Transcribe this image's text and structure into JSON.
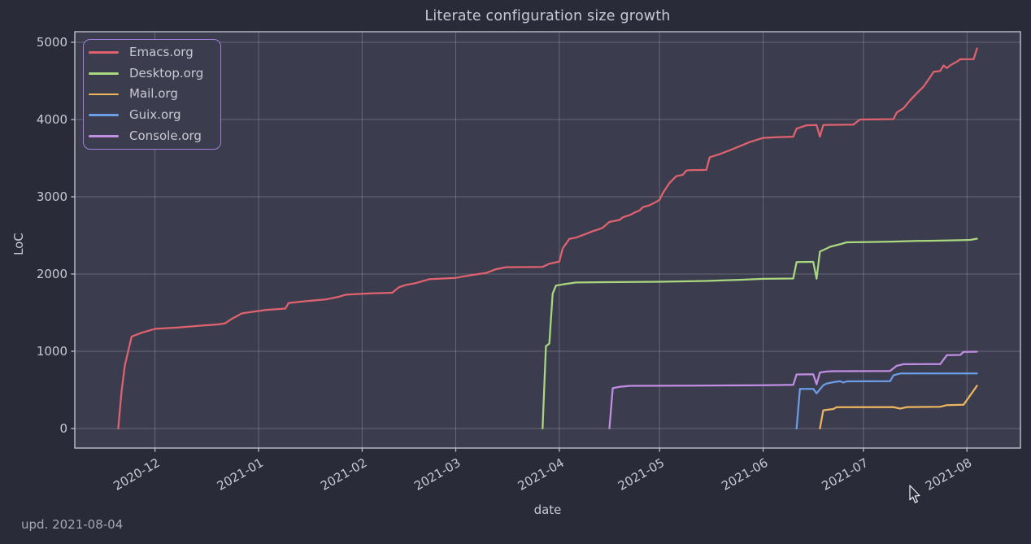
{
  "theme": {
    "figure_background": "#292b38",
    "axes_background": "#3b3d4e",
    "grid_color": "rgba(255,255,255,0.22)",
    "spine_color": "#bfc0c8",
    "text_color": "#c8c9d2",
    "muted_text_color": "#a5a8b2",
    "legend_border_color": "#9e80d8"
  },
  "chart_data": {
    "type": "line",
    "title": "Literate configuration size growth",
    "xlabel": "date",
    "ylabel": "LoC",
    "annotation": "upd. 2021-08-04",
    "grid": true,
    "legend_position": "upper left",
    "xlim": [
      "2020-11-07",
      "2021-08-17"
    ],
    "ylim": [
      -253,
      5137
    ],
    "x_ticks": [
      {
        "date": "2020-12-01",
        "label": "2020-12"
      },
      {
        "date": "2021-01-01",
        "label": "2021-01"
      },
      {
        "date": "2021-02-01",
        "label": "2021-02"
      },
      {
        "date": "2021-03-01",
        "label": "2021-03"
      },
      {
        "date": "2021-04-01",
        "label": "2021-04"
      },
      {
        "date": "2021-05-01",
        "label": "2021-05"
      },
      {
        "date": "2021-06-01",
        "label": "2021-06"
      },
      {
        "date": "2021-07-01",
        "label": "2021-07"
      },
      {
        "date": "2021-08-01",
        "label": "2021-08"
      }
    ],
    "y_ticks": [
      0,
      1000,
      2000,
      3000,
      4000,
      5000
    ],
    "series": [
      {
        "name": "Emacs.org",
        "color": "#e0626e",
        "points": [
          [
            "2020-11-20",
            0
          ],
          [
            "2020-11-21",
            480
          ],
          [
            "2020-11-22",
            820
          ],
          [
            "2020-11-24",
            1190
          ],
          [
            "2020-11-27",
            1240
          ],
          [
            "2020-12-01",
            1290
          ],
          [
            "2020-12-08",
            1308
          ],
          [
            "2020-12-15",
            1332
          ],
          [
            "2020-12-20",
            1348
          ],
          [
            "2020-12-22",
            1362
          ],
          [
            "2020-12-24",
            1420
          ],
          [
            "2020-12-27",
            1490
          ],
          [
            "2021-01-03",
            1535
          ],
          [
            "2021-01-09",
            1552
          ],
          [
            "2021-01-10",
            1625
          ],
          [
            "2021-01-15",
            1648
          ],
          [
            "2021-01-21",
            1670
          ],
          [
            "2021-01-25",
            1705
          ],
          [
            "2021-01-27",
            1732
          ],
          [
            "2021-02-03",
            1748
          ],
          [
            "2021-02-10",
            1758
          ],
          [
            "2021-02-12",
            1828
          ],
          [
            "2021-02-14",
            1858
          ],
          [
            "2021-02-17",
            1882
          ],
          [
            "2021-02-21",
            1932
          ],
          [
            "2021-03-01",
            1950
          ],
          [
            "2021-03-06",
            1988
          ],
          [
            "2021-03-10",
            2012
          ],
          [
            "2021-03-13",
            2062
          ],
          [
            "2021-03-16",
            2088
          ],
          [
            "2021-03-27",
            2093
          ],
          [
            "2021-03-29",
            2133
          ],
          [
            "2021-04-01",
            2162
          ],
          [
            "2021-04-02",
            2330
          ],
          [
            "2021-04-04",
            2455
          ],
          [
            "2021-04-06",
            2472
          ],
          [
            "2021-04-09",
            2520
          ],
          [
            "2021-04-11",
            2555
          ],
          [
            "2021-04-13",
            2582
          ],
          [
            "2021-04-14",
            2600
          ],
          [
            "2021-04-16",
            2675
          ],
          [
            "2021-04-19",
            2700
          ],
          [
            "2021-04-20",
            2735
          ],
          [
            "2021-04-22",
            2762
          ],
          [
            "2021-04-24",
            2805
          ],
          [
            "2021-04-25",
            2822
          ],
          [
            "2021-04-26",
            2865
          ],
          [
            "2021-04-28",
            2890
          ],
          [
            "2021-04-30",
            2935
          ],
          [
            "2021-05-01",
            2962
          ],
          [
            "2021-05-02",
            3050
          ],
          [
            "2021-05-04",
            3180
          ],
          [
            "2021-05-06",
            3266
          ],
          [
            "2021-05-08",
            3285
          ],
          [
            "2021-05-09",
            3338
          ],
          [
            "2021-05-10",
            3345
          ],
          [
            "2021-05-15",
            3348
          ],
          [
            "2021-05-16",
            3512
          ],
          [
            "2021-05-19",
            3552
          ],
          [
            "2021-05-22",
            3602
          ],
          [
            "2021-05-25",
            3655
          ],
          [
            "2021-05-28",
            3708
          ],
          [
            "2021-06-01",
            3762
          ],
          [
            "2021-06-05",
            3772
          ],
          [
            "2021-06-10",
            3778
          ],
          [
            "2021-06-11",
            3882
          ],
          [
            "2021-06-14",
            3925
          ],
          [
            "2021-06-17",
            3928
          ],
          [
            "2021-06-18",
            3778
          ],
          [
            "2021-06-19",
            3930
          ],
          [
            "2021-06-28",
            3935
          ],
          [
            "2021-06-30",
            4000
          ],
          [
            "2021-07-10",
            4005
          ],
          [
            "2021-07-11",
            4092
          ],
          [
            "2021-07-13",
            4145
          ],
          [
            "2021-07-15",
            4250
          ],
          [
            "2021-07-17",
            4340
          ],
          [
            "2021-07-19",
            4425
          ],
          [
            "2021-07-21",
            4550
          ],
          [
            "2021-07-22",
            4618
          ],
          [
            "2021-07-24",
            4630
          ],
          [
            "2021-07-25",
            4700
          ],
          [
            "2021-07-26",
            4665
          ],
          [
            "2021-07-27",
            4702
          ],
          [
            "2021-07-29",
            4750
          ],
          [
            "2021-07-30",
            4780
          ],
          [
            "2021-08-03",
            4782
          ],
          [
            "2021-08-04",
            4920
          ]
        ]
      },
      {
        "name": "Desktop.org",
        "color": "#a9d87e",
        "points": [
          [
            "2021-03-27",
            0
          ],
          [
            "2021-03-28",
            1065
          ],
          [
            "2021-03-29",
            1100
          ],
          [
            "2021-03-30",
            1745
          ],
          [
            "2021-03-31",
            1850
          ],
          [
            "2021-04-02",
            1865
          ],
          [
            "2021-04-06",
            1890
          ],
          [
            "2021-04-15",
            1895
          ],
          [
            "2021-05-01",
            1900
          ],
          [
            "2021-05-15",
            1910
          ],
          [
            "2021-05-25",
            1925
          ],
          [
            "2021-06-01",
            1938
          ],
          [
            "2021-06-10",
            1942
          ],
          [
            "2021-06-11",
            2155
          ],
          [
            "2021-06-16",
            2158
          ],
          [
            "2021-06-17",
            1940
          ],
          [
            "2021-06-18",
            2290
          ],
          [
            "2021-06-20",
            2330
          ],
          [
            "2021-06-21",
            2352
          ],
          [
            "2021-06-24",
            2385
          ],
          [
            "2021-06-26",
            2410
          ],
          [
            "2021-07-03",
            2415
          ],
          [
            "2021-07-10",
            2420
          ],
          [
            "2021-07-17",
            2428
          ],
          [
            "2021-07-24",
            2432
          ],
          [
            "2021-07-30",
            2438
          ],
          [
            "2021-08-02",
            2442
          ],
          [
            "2021-08-04",
            2458
          ]
        ]
      },
      {
        "name": "Mail.org",
        "color": "#ecb55e",
        "points": [
          [
            "2021-06-18",
            0
          ],
          [
            "2021-06-19",
            235
          ],
          [
            "2021-06-22",
            252
          ],
          [
            "2021-06-23",
            277
          ],
          [
            "2021-07-10",
            278
          ],
          [
            "2021-07-12",
            258
          ],
          [
            "2021-07-14",
            278
          ],
          [
            "2021-07-24",
            282
          ],
          [
            "2021-07-26",
            303
          ],
          [
            "2021-07-31",
            308
          ],
          [
            "2021-08-04",
            553
          ]
        ]
      },
      {
        "name": "Guix.org",
        "color": "#6d9ce8",
        "points": [
          [
            "2021-06-11",
            0
          ],
          [
            "2021-06-12",
            512
          ],
          [
            "2021-06-16",
            512
          ],
          [
            "2021-06-17",
            455
          ],
          [
            "2021-06-19",
            560
          ],
          [
            "2021-06-20",
            582
          ],
          [
            "2021-06-22",
            600
          ],
          [
            "2021-06-24",
            612
          ],
          [
            "2021-06-25",
            594
          ],
          [
            "2021-06-26",
            610
          ],
          [
            "2021-07-09",
            612
          ],
          [
            "2021-07-10",
            688
          ],
          [
            "2021-07-12",
            712
          ],
          [
            "2021-08-04",
            712
          ]
        ]
      },
      {
        "name": "Console.org",
        "color": "#c18ee4",
        "points": [
          [
            "2021-04-16",
            0
          ],
          [
            "2021-04-17",
            522
          ],
          [
            "2021-04-19",
            540
          ],
          [
            "2021-04-22",
            552
          ],
          [
            "2021-05-10",
            555
          ],
          [
            "2021-06-01",
            560
          ],
          [
            "2021-06-10",
            565
          ],
          [
            "2021-06-11",
            700
          ],
          [
            "2021-06-16",
            702
          ],
          [
            "2021-06-17",
            572
          ],
          [
            "2021-06-18",
            725
          ],
          [
            "2021-06-20",
            738
          ],
          [
            "2021-06-22",
            742
          ],
          [
            "2021-07-09",
            745
          ],
          [
            "2021-07-11",
            812
          ],
          [
            "2021-07-13",
            832
          ],
          [
            "2021-07-24",
            835
          ],
          [
            "2021-07-26",
            950
          ],
          [
            "2021-07-30",
            952
          ],
          [
            "2021-07-31",
            992
          ],
          [
            "2021-08-04",
            995
          ]
        ]
      }
    ]
  }
}
